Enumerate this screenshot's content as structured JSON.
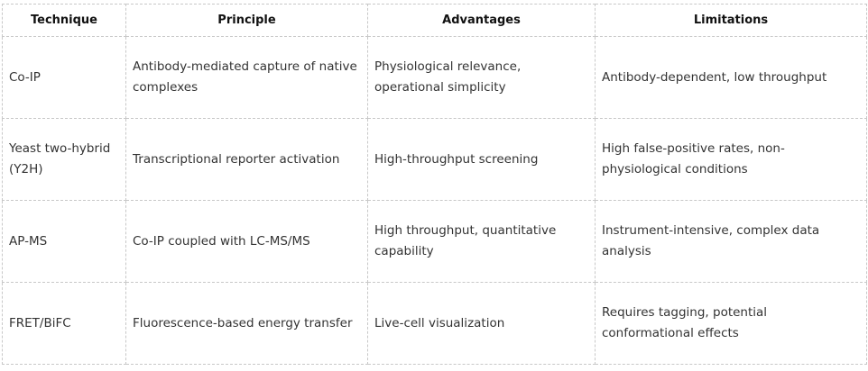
{
  "headers": [
    "Technique",
    "Principle",
    "Advantages",
    "Limitations"
  ],
  "rows": [
    [
      "Co-IP",
      "Antibody-mediated capture of native complexes",
      "Physiological relevance, operational simplicity",
      "Antibody-dependent, low throughput"
    ],
    [
      "Yeast two-hybrid (Y2H)",
      "Transcriptional reporter activation",
      "High-throughput screening",
      "High false-positive rates, non-physiological conditions"
    ],
    [
      "AP-MS",
      "Co-IP coupled with LC-MS/MS",
      "High throughput, quantitative capability",
      "Instrument-intensive, complex data analysis"
    ],
    [
      "FRET/BiFC",
      "Fluorescence-based energy transfer",
      "Live-cell visualization",
      "Requires tagging, potential conformational effects"
    ]
  ]
}
